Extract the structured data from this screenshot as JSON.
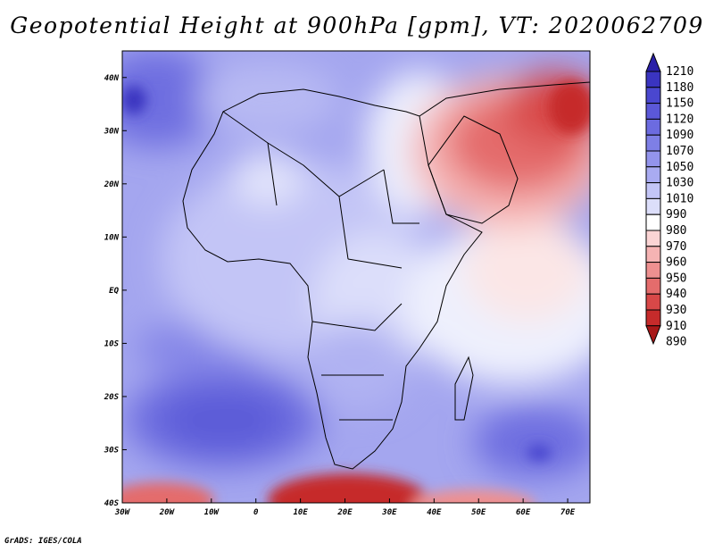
{
  "title": "Geopotential Height at 900hPa [gpm], VT: 2020062709",
  "credit": "GrADS: IGES/COLA",
  "map": {
    "lat_ticks": [
      "40N",
      "30N",
      "20N",
      "10N",
      "EQ",
      "10S",
      "20S",
      "30S",
      "40S"
    ],
    "lon_ticks": [
      "30W",
      "20W",
      "10W",
      "0",
      "10E",
      "20E",
      "30E",
      "40E",
      "50E",
      "60E",
      "70E"
    ],
    "extent": {
      "lon_min": -30,
      "lon_max": 75,
      "lat_min": -40,
      "lat_max": 45
    }
  },
  "colorbar": {
    "levels": [
      "1210",
      "1180",
      "1150",
      "1120",
      "1090",
      "1070",
      "1050",
      "1030",
      "1010",
      "990",
      "980",
      "970",
      "960",
      "950",
      "940",
      "930",
      "910",
      "890"
    ],
    "colors": [
      "#2a1fa8",
      "#3a34c0",
      "#4a47cf",
      "#5b58d8",
      "#6c6be0",
      "#7e7fe6",
      "#9394ec",
      "#a9abf1",
      "#c3c5f6",
      "#dcdefa",
      "#ffffff",
      "#fbd4d4",
      "#f5b3b3",
      "#ee9090",
      "#e46c6c",
      "#d84848",
      "#c62b2b",
      "#a81818"
    ]
  }
}
